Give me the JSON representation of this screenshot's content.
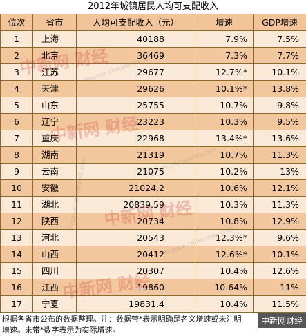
{
  "title": "2012年城镇居民人均可支配收入",
  "headers": [
    "位次",
    "省市",
    "人均可支配收入（元）",
    "增速",
    "GDP增速"
  ],
  "rows": [
    [
      "1",
      "上海",
      "40188",
      "7.9%",
      "7.5%"
    ],
    [
      "2",
      "北京",
      "36469",
      "7.3%",
      "7.7%"
    ],
    [
      "3",
      "江苏",
      "29677",
      "12.7%*",
      "10.1%"
    ],
    [
      "4",
      "天津",
      "29626",
      "10.1%*",
      "13.8%"
    ],
    [
      "5",
      "山东",
      "25755",
      "10.7%",
      "9.8%"
    ],
    [
      "6",
      "辽宁",
      "23223",
      "10.3%",
      "9.5%"
    ],
    [
      "7",
      "重庆",
      "22968",
      "13.4%*",
      "13.6%"
    ],
    [
      "8",
      "湖南",
      "21319",
      "10.7%",
      "11.3%"
    ],
    [
      "9",
      "云南",
      "21075",
      "10.2%",
      "13%"
    ],
    [
      "10",
      "安徽",
      "21024.2",
      "10.6%",
      "12.1%"
    ],
    [
      "11",
      "湖北",
      "20839.59",
      "10.3%",
      "11.3%"
    ],
    [
      "12",
      "陕西",
      "20734",
      "10.8%",
      "12.9%"
    ],
    [
      "13",
      "河北",
      "20543",
      "12.3%*",
      "9.6%"
    ],
    [
      "14",
      "山西",
      "20412",
      "12.6%*",
      "10.1%"
    ],
    [
      "15",
      "四川",
      "20307",
      "10.4%",
      "12.6%"
    ],
    [
      "16",
      "江西",
      "19860",
      "10.64%",
      "11%"
    ],
    [
      "17",
      "宁夏",
      "19831.4",
      "10.4%",
      "11.5%"
    ]
  ],
  "note_line1": "根据各省市公布的数据整理。注：数据带*表示明确是名义增速或未注明",
  "note_line2": "增速。未带*数字表示为实际增速。",
  "watermark_text": "中新网 财经",
  "watermark_url": "finance.chinanews.com",
  "brand": "中新网财经",
  "colors": {
    "header_bg": "#f1c49a",
    "row_light": "#fbe9d8",
    "row_dark": "#f2c79d",
    "border": "#8a6a2a",
    "watermark": "#cd3c3c"
  }
}
